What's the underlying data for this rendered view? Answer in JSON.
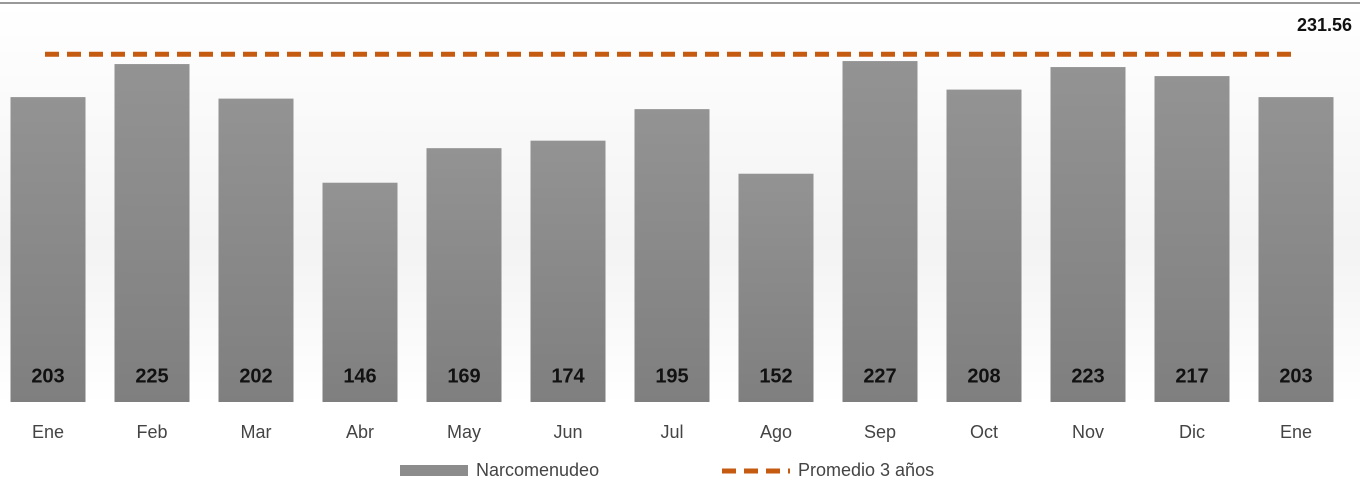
{
  "chart_data": {
    "type": "bar",
    "categories": [
      "Ene",
      "Feb",
      "Mar",
      "Abr",
      "May",
      "Jun",
      "Jul",
      "Ago",
      "Sep",
      "Oct",
      "Nov",
      "Dic",
      "Ene"
    ],
    "series": [
      {
        "name": "Narcomenudeo",
        "color": "#8c8c8c",
        "values": [
          203,
          225,
          202,
          146,
          169,
          174,
          195,
          152,
          227,
          208,
          223,
          217,
          203
        ]
      }
    ],
    "average": {
      "name": "Promedio 3 años",
      "color": "#c55a11",
      "value": 231.56
    },
    "ylim": [
      0,
      261
    ]
  }
}
